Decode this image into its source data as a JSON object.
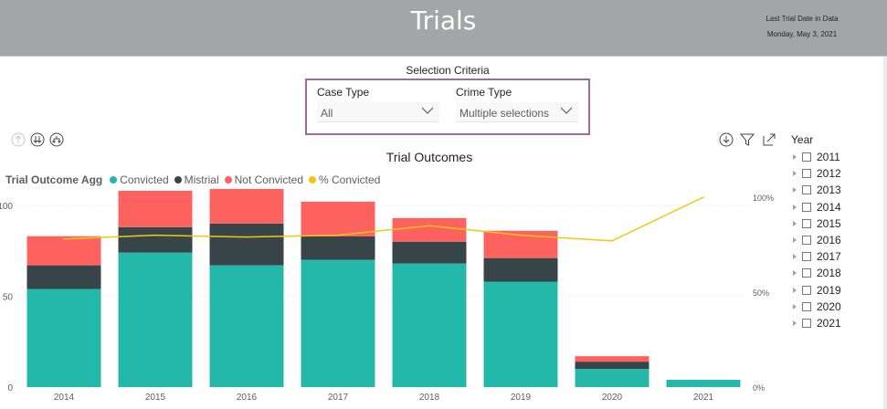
{
  "header": {
    "title": "Trials",
    "last_date_label": "Last Trial Date in Data",
    "last_date_value": "Monday, May 3, 2021"
  },
  "selection": {
    "title": "Selection Criteria",
    "case_type": {
      "label": "Case Type",
      "value": "All"
    },
    "crime_type": {
      "label": "Crime Type",
      "value": "Multiple selections"
    }
  },
  "year_filter": {
    "title": "Year",
    "items": [
      "2011",
      "2012",
      "2013",
      "2014",
      "2015",
      "2016",
      "2017",
      "2018",
      "2019",
      "2020",
      "2021"
    ]
  },
  "colors": {
    "convicted": "#24b8a9",
    "mistrial": "#374549",
    "not_convicted": "#fd625e",
    "pct_convicted": "#f2c80f"
  },
  "icons": [
    "drill-up-icon",
    "drill-down-all-icon",
    "expand-hierarchy-icon",
    "drill-mode-icon",
    "filter-icon",
    "focus-mode-icon",
    "chevron-down-icon",
    "expand-arrow-icon",
    "checkbox-icon"
  ],
  "chart_data": {
    "type": "bar",
    "stacked": true,
    "title": "Trial Outcomes",
    "legend_title": "Trial Outcome Agg",
    "legend_position": "top-left",
    "categories": [
      "2014",
      "2015",
      "2016",
      "2017",
      "2018",
      "2019",
      "2020",
      "2021"
    ],
    "series": [
      {
        "name": "Convicted",
        "values": [
          54,
          74,
          67,
          70,
          68,
          58,
          10,
          4
        ]
      },
      {
        "name": "Mistrial",
        "values": [
          13,
          14,
          23,
          13,
          12,
          13,
          4,
          0
        ]
      },
      {
        "name": "Not Convicted",
        "values": [
          16,
          20,
          19,
          19,
          13,
          15,
          3,
          0
        ]
      }
    ],
    "line_series": {
      "name": "% Convicted",
      "values": [
        0.78,
        0.8,
        0.79,
        0.8,
        0.85,
        0.8,
        0.77,
        1.0
      ]
    },
    "y_ticks": [
      "0",
      "50",
      "100"
    ],
    "ylim": [
      0,
      110
    ],
    "y2_ticks": [
      "0%",
      "50%",
      "100%"
    ],
    "y2lim": [
      0,
      1.0
    ],
    "grid": true
  }
}
